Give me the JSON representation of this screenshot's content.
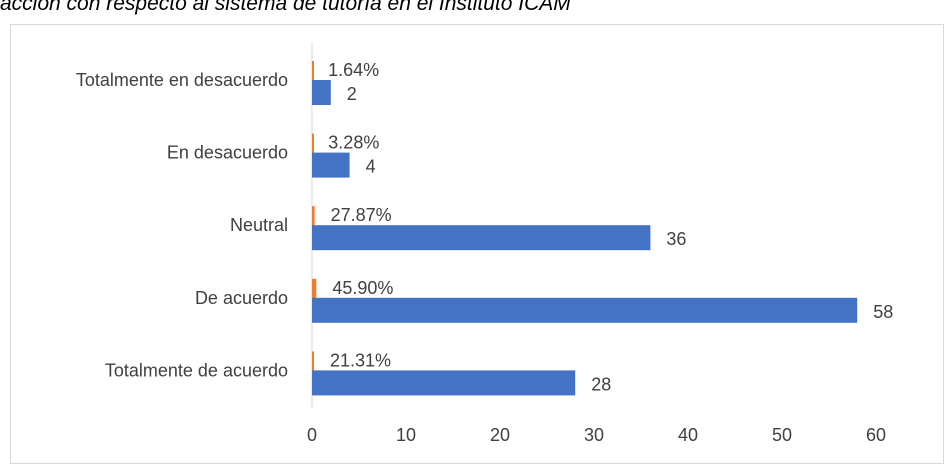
{
  "caption": "acción con respecto al sistema de tutoría en el Instituto ICAM",
  "chart_data": {
    "type": "bar",
    "orientation": "horizontal",
    "categories": [
      "Totalmente en desacuerdo",
      "En desacuerdo",
      "Neutral",
      "De acuerdo",
      "Totalmente de acuerdo"
    ],
    "series": [
      {
        "values": [
          0.0164,
          0.0328,
          0.2787,
          0.459,
          0.2131
        ],
        "labels": [
          "1.64%",
          "3.28%",
          "27.87%",
          "45.90%",
          "21.31%"
        ],
        "color": "#ED7D31"
      },
      {
        "values": [
          2,
          4,
          36,
          58,
          28
        ],
        "labels": [
          "2",
          "4",
          "36",
          "58",
          "28"
        ],
        "color": "#4472C4"
      }
    ],
    "x_ticks": [
      "0",
      "10",
      "20",
      "30",
      "40",
      "50",
      "60"
    ],
    "xlim": [
      0,
      60
    ],
    "grid": false,
    "legend": "none"
  }
}
